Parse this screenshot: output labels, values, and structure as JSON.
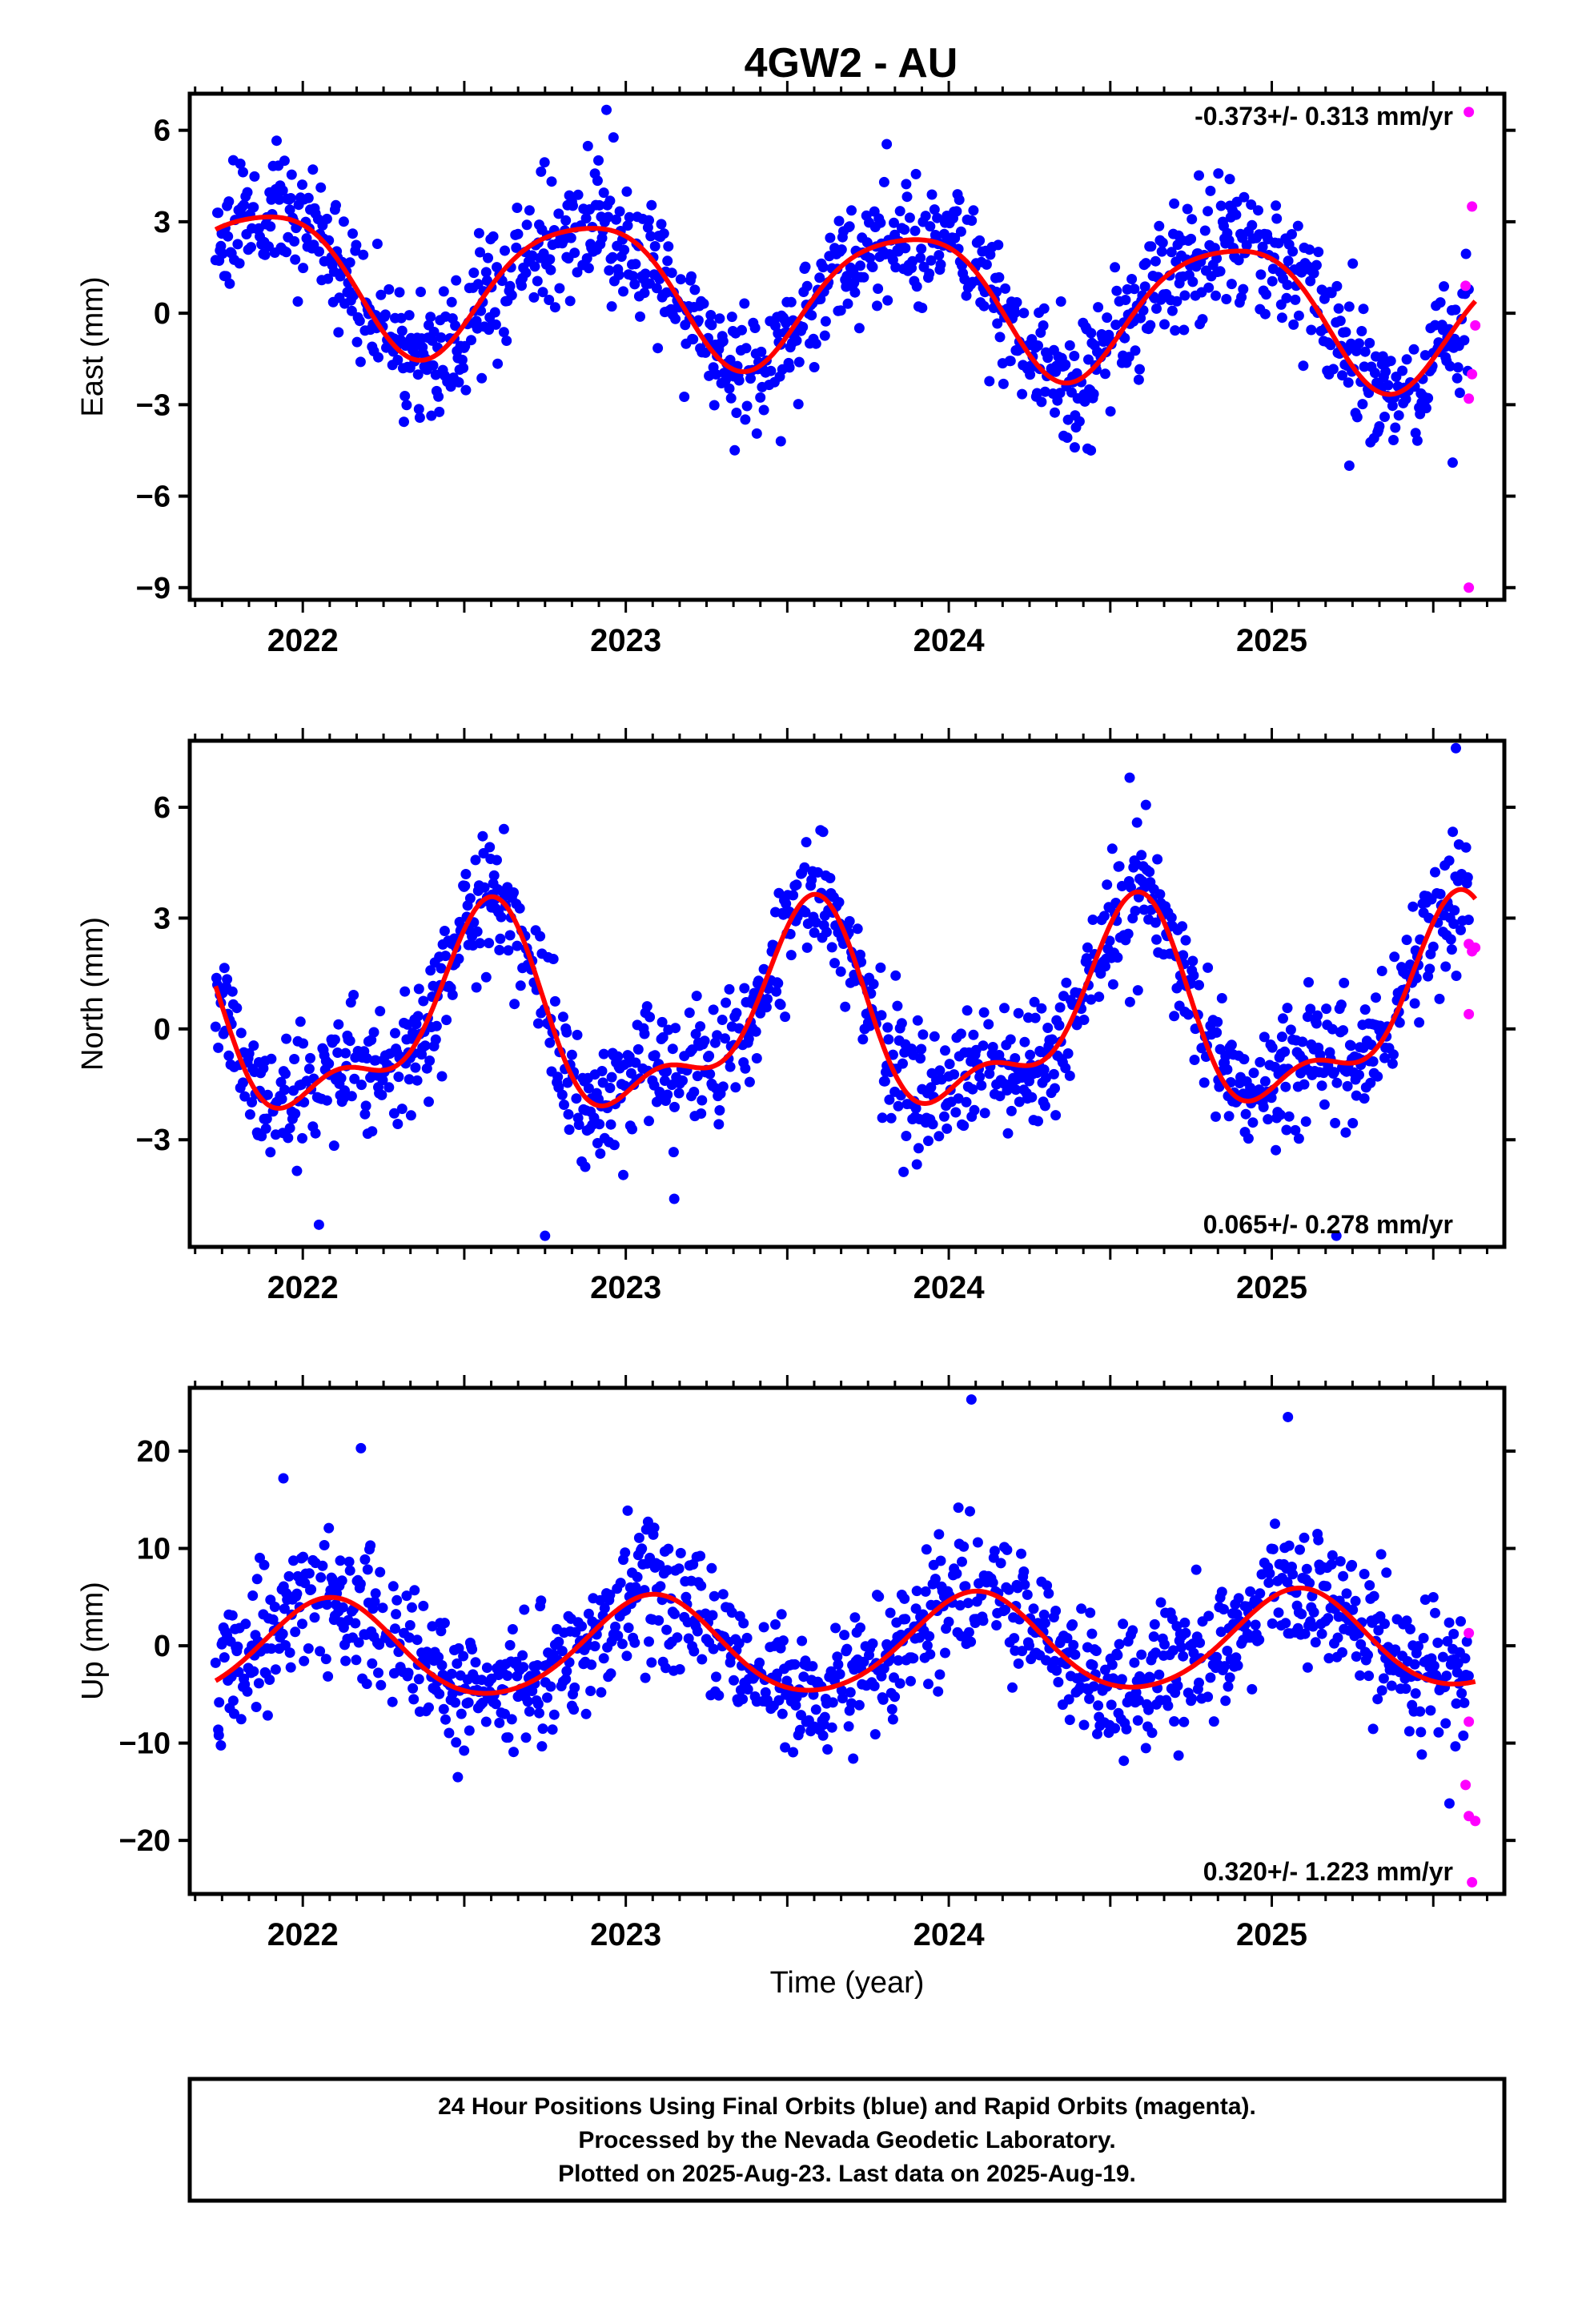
{
  "title": "4GW2 - AU",
  "x_axis_label": "Time (year)",
  "colors": {
    "final": "#0000ff",
    "rapid": "#ff00ff",
    "fit": "#ff0000",
    "axes": "#000000"
  },
  "footer": {
    "line1": "24 Hour Positions Using Final Orbits (blue) and Rapid Orbits (magenta).",
    "line2": "Processed by the Nevada Geodetic Laboratory.",
    "line3": "Plotted on 2025-Aug-23. Last data on 2025-Aug-19."
  },
  "chart_data": [
    {
      "type": "scatter",
      "ylabel": "East (mm)",
      "rate_label": "-0.373+/- 0.313 mm/yr",
      "xlim": [
        2021.65,
        2025.72
      ],
      "ylim": [
        -9.4,
        7.2
      ],
      "yticks": [
        -9,
        -6,
        -3,
        0,
        3,
        6
      ],
      "ytick_labels": [
        "−9",
        "−6",
        "−3",
        "0",
        "3",
        "6"
      ],
      "xticks": [
        2022,
        2023,
        2024,
        2025
      ],
      "xtick_labels": [
        "2022",
        "2023",
        "2024",
        "2025"
      ],
      "data_start": 2021.73,
      "data_end": 2025.63,
      "fit": {
        "offset": 0.6,
        "trend": -0.373,
        "t0": 2023.7,
        "amp1": 2.25,
        "peak1": 2023.87,
        "amp2": 0.4,
        "peak2": 2023.6
      },
      "scatter_noise": 1.05,
      "seed": 11,
      "rapid_points": [
        {
          "x": 2025.61,
          "y": 6.6
        },
        {
          "x": 2025.62,
          "y": 3.5
        },
        {
          "x": 2025.6,
          "y": 0.9
        },
        {
          "x": 2025.63,
          "y": -0.4
        },
        {
          "x": 2025.62,
          "y": -2.0
        },
        {
          "x": 2025.61,
          "y": -2.8
        },
        {
          "x": 2025.61,
          "y": -9.0
        }
      ],
      "outliers": [
        {
          "x": 2025.24,
          "y": -5.0
        },
        {
          "x": 2025.56,
          "y": -4.9
        },
        {
          "x": 2024.44,
          "y": -4.5
        },
        {
          "x": 2024.39,
          "y": -4.4
        },
        {
          "x": 2023.48,
          "y": -4.2
        },
        {
          "x": 2024.87,
          "y": 4.4
        },
        {
          "x": 2023.8,
          "y": 4.3
        }
      ]
    },
    {
      "type": "scatter",
      "ylabel": "North (mm)",
      "rate_label": "0.065+/- 0.278 mm/yr",
      "xlim": [
        2021.65,
        2025.72
      ],
      "ylim": [
        -5.9,
        7.8
      ],
      "yticks": [
        -3,
        0,
        3,
        6
      ],
      "ytick_labels": [
        "−3",
        "0",
        "3",
        "6"
      ],
      "xticks": [
        2022,
        2023,
        2024,
        2025
      ],
      "xtick_labels": [
        "2022",
        "2023",
        "2024",
        "2025"
      ],
      "data_start": 2021.73,
      "data_end": 2025.63,
      "fit": {
        "offset": 0.2,
        "trend": 0.065,
        "t0": 2023.7,
        "amp1": 2.4,
        "peak1": 2023.56,
        "amp2": 1.1,
        "peak2": 2023.6
      },
      "scatter_noise": 0.85,
      "seed": 23,
      "rapid_points": [
        {
          "x": 2025.61,
          "y": 2.3
        },
        {
          "x": 2025.63,
          "y": 2.2
        },
        {
          "x": 2025.62,
          "y": 2.1
        },
        {
          "x": 2025.61,
          "y": 0.4
        }
      ],
      "outliers": [
        {
          "x": 2022.05,
          "y": -5.3
        },
        {
          "x": 2022.75,
          "y": -5.6
        },
        {
          "x": 2025.2,
          "y": -5.6
        },
        {
          "x": 2025.57,
          "y": 7.6
        },
        {
          "x": 2024.56,
          "y": 6.8
        },
        {
          "x": 2023.15,
          "y": -4.6
        }
      ]
    },
    {
      "type": "scatter",
      "ylabel": "Up (mm)",
      "rate_label": "0.320+/- 1.223 mm/yr",
      "xlim": [
        2021.65,
        2025.72
      ],
      "ylim": [
        -25.5,
        26.5
      ],
      "yticks": [
        -20,
        -10,
        0,
        10,
        20
      ],
      "ytick_labels": [
        "−20",
        "−10",
        "0",
        "10",
        "20"
      ],
      "xticks": [
        2022,
        2023,
        2024,
        2025
      ],
      "xtick_labels": [
        "2022",
        "2023",
        "2024",
        "2025"
      ],
      "data_start": 2021.73,
      "data_end": 2025.63,
      "fit": {
        "offset": 0.0,
        "trend": 0.32,
        "t0": 2023.7,
        "amp1": 5.0,
        "peak1": 2024.08,
        "amp2": 0.5,
        "peak2": 2023.6
      },
      "scatter_noise": 3.4,
      "seed": 37,
      "rapid_points": [
        {
          "x": 2025.61,
          "y": 1.3
        },
        {
          "x": 2025.61,
          "y": -7.8
        },
        {
          "x": 2025.6,
          "y": -14.3
        },
        {
          "x": 2025.61,
          "y": -17.5
        },
        {
          "x": 2025.63,
          "y": -18.0
        },
        {
          "x": 2025.62,
          "y": -24.3
        }
      ],
      "outliers": [
        {
          "x": 2024.07,
          "y": 25.3
        },
        {
          "x": 2025.05,
          "y": 23.5
        },
        {
          "x": 2022.18,
          "y": 20.3
        },
        {
          "x": 2021.94,
          "y": 17.2
        },
        {
          "x": 2025.55,
          "y": -16.2
        },
        {
          "x": 2021.74,
          "y": -9.2
        },
        {
          "x": 2022.48,
          "y": -13.5
        }
      ]
    }
  ]
}
